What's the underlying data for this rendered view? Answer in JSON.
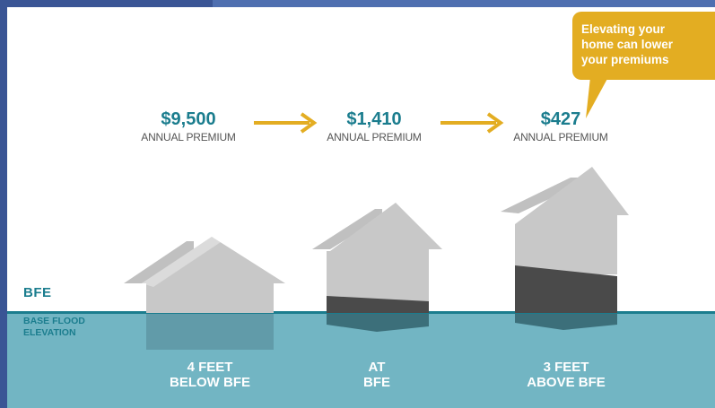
{
  "callout": {
    "text_lines": [
      "Elevating your",
      "home can lower",
      "your premiums"
    ]
  },
  "premiums": [
    {
      "amount": "$9,500",
      "label": "ANNUAL PREMIUM"
    },
    {
      "amount": "$1,410",
      "label": "ANNUAL PREMIUM"
    },
    {
      "amount": "$427",
      "label": "ANNUAL PREMIUM"
    }
  ],
  "levels": [
    {
      "line1": "4 FEET",
      "line2": "BELOW BFE"
    },
    {
      "line1": "AT",
      "line2": "BFE"
    },
    {
      "line1": "3 FEET",
      "line2": "ABOVE BFE"
    }
  ],
  "bfe": {
    "abbr": "BFE",
    "full_line1": "BASE FLOOD",
    "full_line2": "ELEVATION"
  },
  "colors": {
    "teal": "#1b7d8e",
    "water": "#72b5c3",
    "accent": "#e3ad22",
    "house": "#c8c8c8",
    "house_dark": "#4a4a4a"
  }
}
